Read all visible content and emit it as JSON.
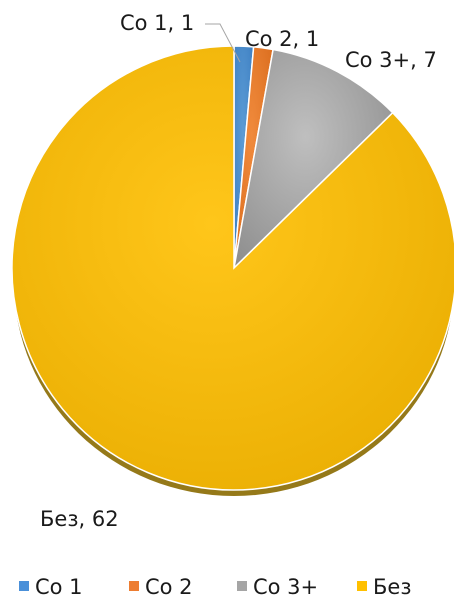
{
  "chart_data": {
    "type": "pie",
    "categories": [
      "Со 1",
      "Со 2",
      "Со 3+",
      "Без"
    ],
    "values": [
      1,
      1,
      7,
      62
    ],
    "colors": [
      "#4a90d9",
      "#ed7d31",
      "#a5a5a5",
      "#ffc000"
    ],
    "data_labels": [
      "Со 1, 1",
      "Со 2, 1",
      "Со 3+, 7",
      "Без, 62"
    ],
    "title": "",
    "legend": "bottom",
    "start_angle_deg": 0,
    "direction": "clockwise",
    "style": "3d-shaded"
  }
}
